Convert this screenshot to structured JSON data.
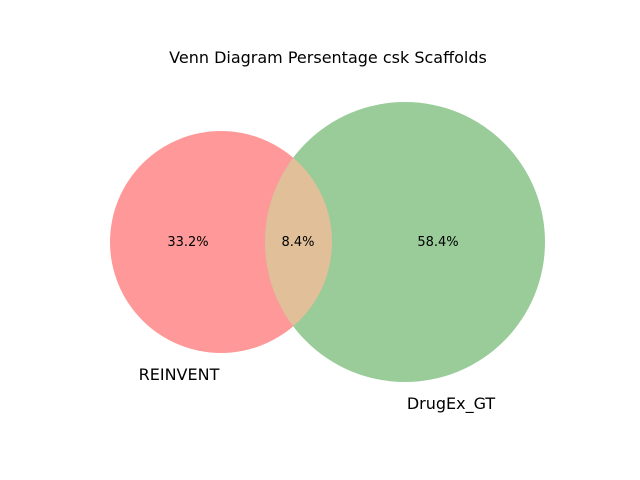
{
  "title": "Venn Diagram Persentage csk Scaffolds",
  "sets": [
    {
      "id": "a",
      "label": "REINVENT",
      "region_percent": "33.2%",
      "color": "#ff9999"
    },
    {
      "id": "b",
      "label": "DrugEx_GT",
      "region_percent": "58.4%",
      "color": "#99cc99"
    }
  ],
  "intersection": {
    "percent": "8.4%",
    "color": "#e0bf99"
  },
  "chart_data": {
    "type": "venn",
    "title": "Venn Diagram Persentage csk Scaffolds",
    "sets": [
      "REINVENT",
      "DrugEx_GT"
    ],
    "regions": [
      {
        "sets": [
          "REINVENT"
        ],
        "value": 33.2,
        "label": "33.2%"
      },
      {
        "sets": [
          "REINVENT",
          "DrugEx_GT"
        ],
        "value": 8.4,
        "label": "8.4%"
      },
      {
        "sets": [
          "DrugEx_GT"
        ],
        "value": 58.4,
        "label": "58.4%"
      }
    ]
  }
}
